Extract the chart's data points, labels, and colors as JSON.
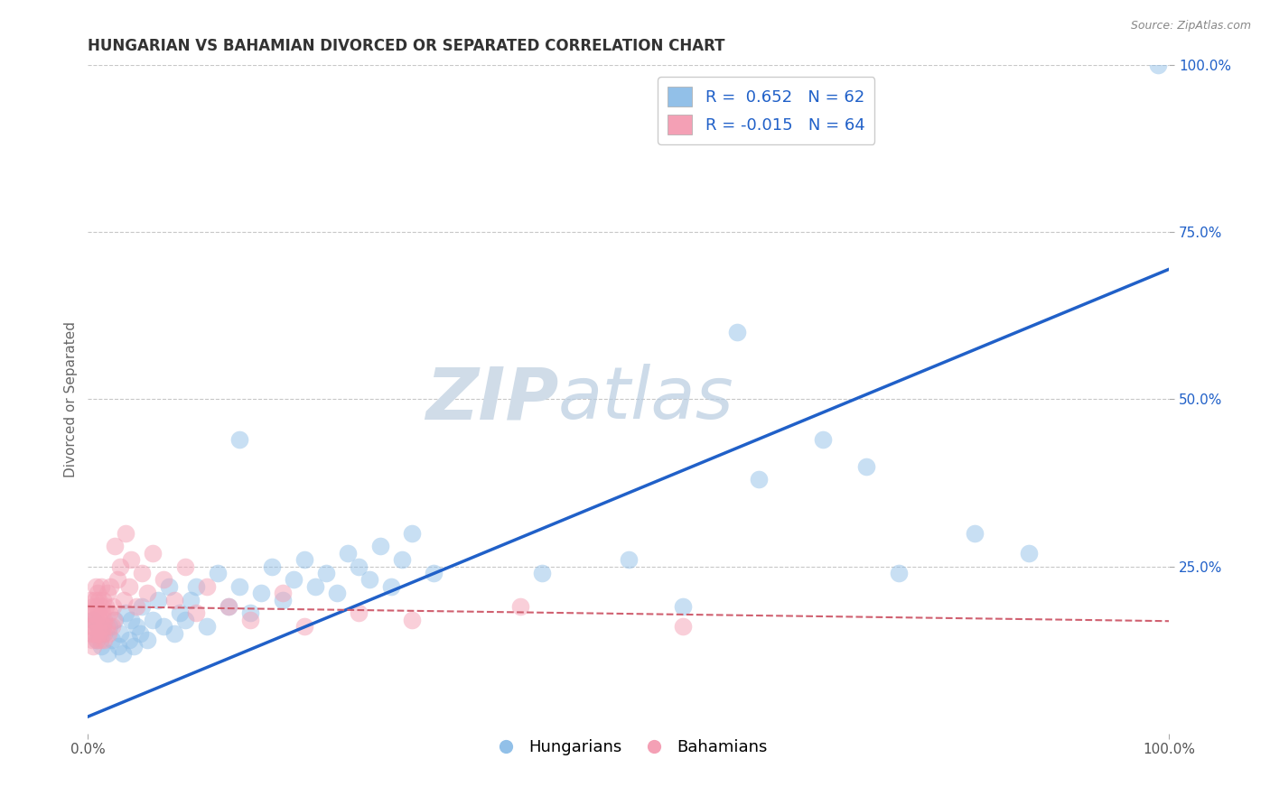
{
  "title": "HUNGARIAN VS BAHAMIAN DIVORCED OR SEPARATED CORRELATION CHART",
  "source_text": "Source: ZipAtlas.com",
  "ylabel": "Divorced or Separated",
  "legend_blue_R": "0.652",
  "legend_blue_N": "62",
  "legend_pink_R": "-0.015",
  "legend_pink_N": "64",
  "blue_color": "#92c0e8",
  "pink_color": "#f4a0b5",
  "blue_line_color": "#2060c8",
  "pink_line_color": "#d06070",
  "background_color": "#ffffff",
  "grid_color": "#c8c8c8",
  "watermark_color": "#d0dce8",
  "xlim": [
    0,
    1.0
  ],
  "ylim": [
    0,
    1.0
  ],
  "blue_scatter_x": [
    0.005,
    0.008,
    0.01,
    0.012,
    0.015,
    0.018,
    0.02,
    0.022,
    0.025,
    0.028,
    0.03,
    0.032,
    0.035,
    0.038,
    0.04,
    0.042,
    0.045,
    0.048,
    0.05,
    0.055,
    0.06,
    0.065,
    0.07,
    0.075,
    0.08,
    0.085,
    0.09,
    0.095,
    0.1,
    0.11,
    0.12,
    0.13,
    0.14,
    0.15,
    0.16,
    0.17,
    0.18,
    0.19,
    0.2,
    0.21,
    0.22,
    0.23,
    0.24,
    0.25,
    0.26,
    0.27,
    0.28,
    0.29,
    0.3,
    0.32,
    0.14,
    0.42,
    0.5,
    0.55,
    0.6,
    0.62,
    0.68,
    0.72,
    0.75,
    0.82,
    0.87,
    0.99
  ],
  "blue_scatter_y": [
    0.17,
    0.14,
    0.16,
    0.13,
    0.15,
    0.12,
    0.16,
    0.14,
    0.17,
    0.13,
    0.15,
    0.12,
    0.18,
    0.14,
    0.17,
    0.13,
    0.16,
    0.15,
    0.19,
    0.14,
    0.17,
    0.2,
    0.16,
    0.22,
    0.15,
    0.18,
    0.17,
    0.2,
    0.22,
    0.16,
    0.24,
    0.19,
    0.22,
    0.18,
    0.21,
    0.25,
    0.2,
    0.23,
    0.26,
    0.22,
    0.24,
    0.21,
    0.27,
    0.25,
    0.23,
    0.28,
    0.22,
    0.26,
    0.3,
    0.24,
    0.44,
    0.24,
    0.26,
    0.19,
    0.6,
    0.38,
    0.44,
    0.4,
    0.24,
    0.3,
    0.27,
    1.0
  ],
  "pink_scatter_x": [
    0.001,
    0.002,
    0.002,
    0.003,
    0.003,
    0.004,
    0.004,
    0.005,
    0.005,
    0.005,
    0.006,
    0.006,
    0.007,
    0.007,
    0.008,
    0.008,
    0.009,
    0.009,
    0.01,
    0.01,
    0.01,
    0.011,
    0.011,
    0.012,
    0.012,
    0.013,
    0.013,
    0.014,
    0.014,
    0.015,
    0.015,
    0.016,
    0.017,
    0.018,
    0.019,
    0.02,
    0.021,
    0.022,
    0.023,
    0.024,
    0.025,
    0.027,
    0.03,
    0.033,
    0.035,
    0.038,
    0.04,
    0.045,
    0.05,
    0.055,
    0.06,
    0.07,
    0.08,
    0.09,
    0.1,
    0.11,
    0.13,
    0.15,
    0.18,
    0.2,
    0.25,
    0.3,
    0.4,
    0.55
  ],
  "pink_scatter_y": [
    0.18,
    0.16,
    0.2,
    0.15,
    0.18,
    0.14,
    0.17,
    0.19,
    0.13,
    0.16,
    0.2,
    0.15,
    0.22,
    0.17,
    0.14,
    0.19,
    0.16,
    0.21,
    0.15,
    0.18,
    0.2,
    0.14,
    0.17,
    0.19,
    0.22,
    0.15,
    0.18,
    0.16,
    0.2,
    0.14,
    0.17,
    0.19,
    0.16,
    0.21,
    0.15,
    0.18,
    0.22,
    0.16,
    0.19,
    0.17,
    0.28,
    0.23,
    0.25,
    0.2,
    0.3,
    0.22,
    0.26,
    0.19,
    0.24,
    0.21,
    0.27,
    0.23,
    0.2,
    0.25,
    0.18,
    0.22,
    0.19,
    0.17,
    0.21,
    0.16,
    0.18,
    0.17,
    0.19,
    0.16
  ],
  "blue_line_x": [
    0.0,
    1.0
  ],
  "blue_line_y": [
    0.025,
    0.695
  ],
  "pink_line_x": [
    0.0,
    1.0
  ],
  "pink_line_y": [
    0.19,
    0.168
  ],
  "title_fontsize": 12,
  "axis_label_fontsize": 11,
  "tick_fontsize": 11,
  "legend_fontsize": 13,
  "right_tick_color": "#2060c8"
}
